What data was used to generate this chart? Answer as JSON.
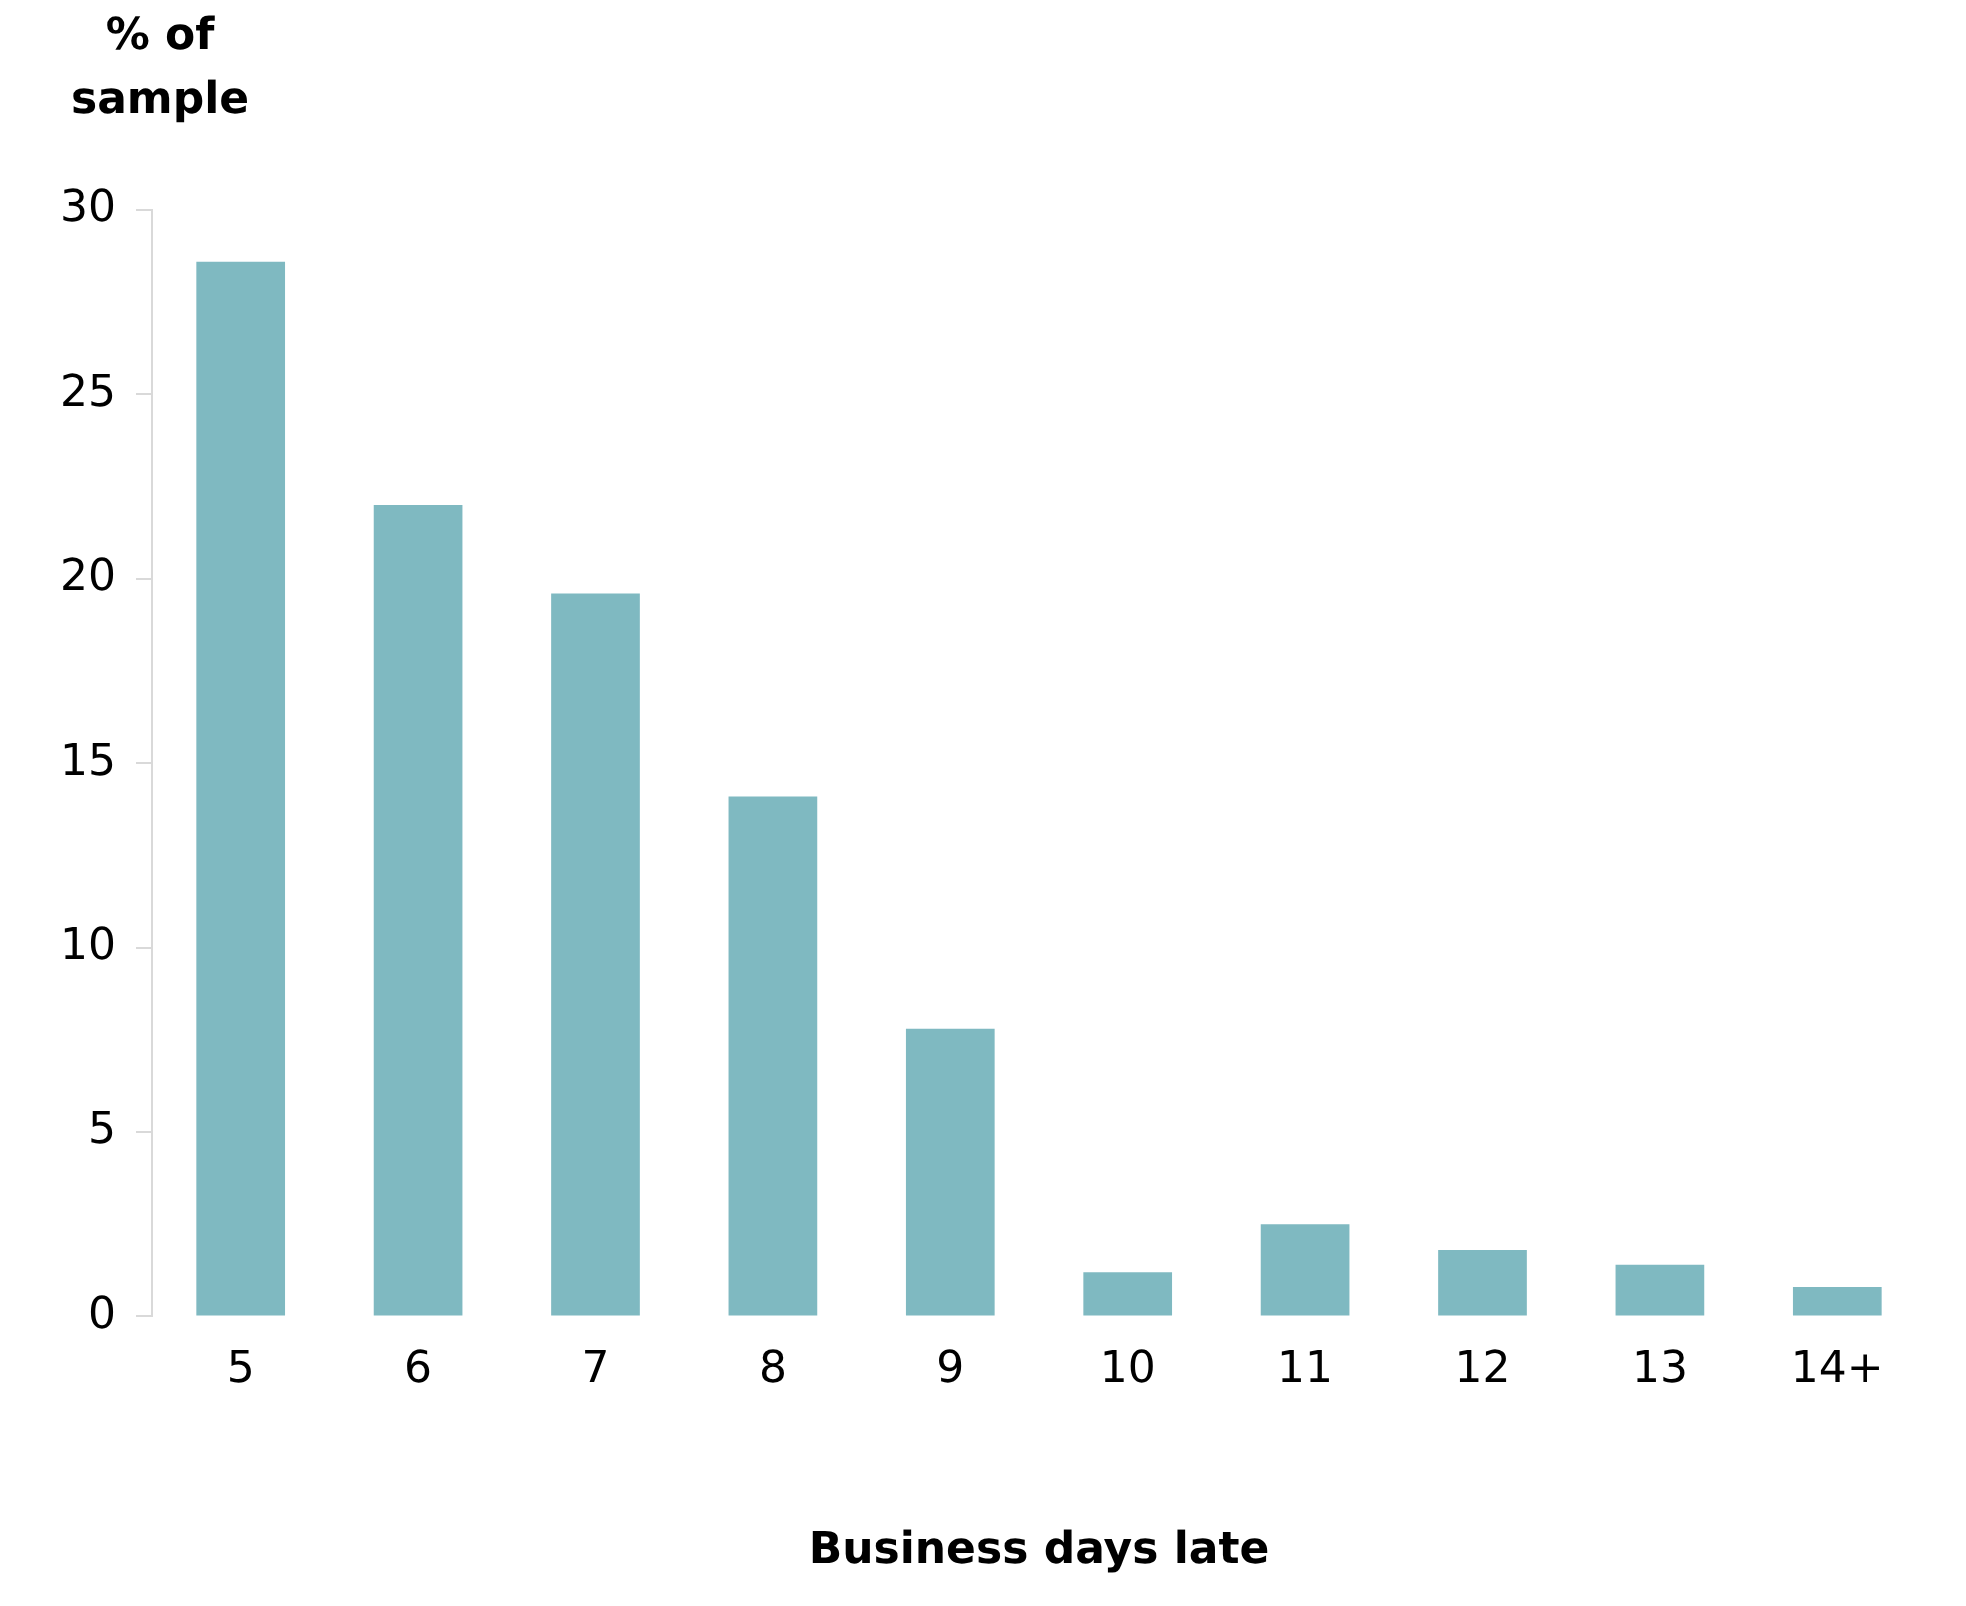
{
  "chart_data": {
    "type": "bar",
    "ylabel": "% of sample",
    "xlabel": "Business days late",
    "categories": [
      "5",
      "6",
      "7",
      "8",
      "9",
      "10",
      "11",
      "12",
      "13",
      "14+"
    ],
    "values": [
      28.6,
      22.0,
      19.6,
      14.1,
      7.8,
      1.2,
      2.5,
      1.8,
      1.4,
      0.8
    ],
    "color": "#7fb9c1",
    "ylim": [
      0,
      30
    ],
    "yticks": [
      0,
      5,
      10,
      15,
      20,
      25,
      30
    ],
    "grid": false,
    "legend": false
  }
}
